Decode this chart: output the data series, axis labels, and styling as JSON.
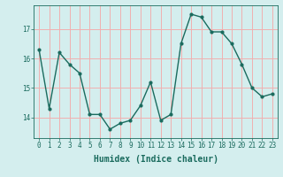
{
  "x": [
    0,
    1,
    2,
    3,
    4,
    5,
    6,
    7,
    8,
    9,
    10,
    11,
    12,
    13,
    14,
    15,
    16,
    17,
    18,
    19,
    20,
    21,
    22,
    23
  ],
  "y": [
    16.3,
    14.3,
    16.2,
    15.8,
    15.5,
    14.1,
    14.1,
    13.6,
    13.8,
    13.9,
    14.4,
    15.2,
    13.9,
    14.1,
    16.5,
    17.5,
    17.4,
    16.9,
    16.9,
    16.5,
    15.8,
    15.0,
    14.7,
    14.8
  ],
  "line_color": "#1a6b5e",
  "marker": "o",
  "marker_size": 2,
  "linewidth": 1.0,
  "xlabel": "Humidex (Indice chaleur)",
  "xlabel_fontsize": 7,
  "xlim": [
    -0.5,
    23.5
  ],
  "ylim": [
    13.3,
    17.8
  ],
  "yticks": [
    14,
    15,
    16,
    17
  ],
  "xticks": [
    0,
    1,
    2,
    3,
    4,
    5,
    6,
    7,
    8,
    9,
    10,
    11,
    12,
    13,
    14,
    15,
    16,
    17,
    18,
    19,
    20,
    21,
    22,
    23
  ],
  "background_color": "#d4eeee",
  "grid_color": "#f0b0b0",
  "tick_color": "#1a6b5e",
  "tick_fontsize": 5.5,
  "title": ""
}
